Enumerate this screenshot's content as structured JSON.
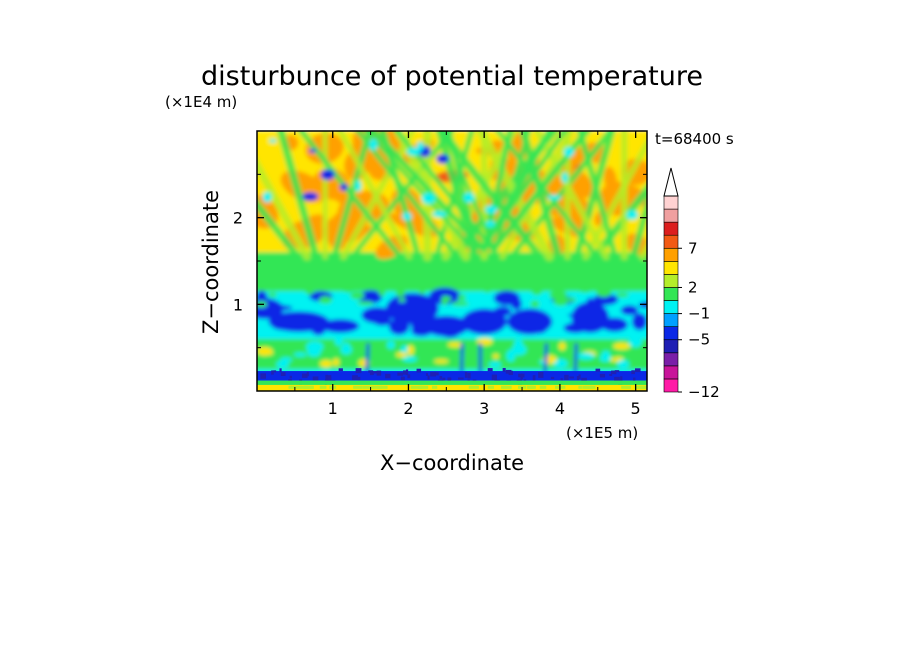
{
  "chart_data": {
    "type": "heatmap",
    "title": "disturbunce of potential temperature",
    "xlabel": "X−coordinate",
    "ylabel": "Z−coordinate",
    "x_unit": "(×1E5 m)",
    "y_unit": "(×1E4 m)",
    "time_label": "t=68400 s",
    "xlim": [
      0,
      5.15
    ],
    "ylim": [
      0,
      3.0
    ],
    "x_ticks": [
      1,
      2,
      3,
      4,
      5
    ],
    "y_ticks": [
      1,
      2
    ],
    "x_tick_labels": [
      "1",
      "2",
      "3",
      "4",
      "5"
    ],
    "y_tick_labels": [
      "1",
      "2"
    ],
    "colorbar": {
      "levels": [
        -12,
        -11,
        -9,
        -7,
        -5,
        -3,
        -1,
        1,
        2,
        3,
        5,
        7,
        9,
        11
      ],
      "colors": [
        "#ff1aa6",
        "#c8149a",
        "#7a1fa8",
        "#1f1fb4",
        "#0a28e6",
        "#00a0ff",
        "#00f2f2",
        "#33e655",
        "#b4ee2a",
        "#ffe500",
        "#ffa000",
        "#f25a14",
        "#dc1e1e",
        "#f0a0a0",
        "#ffd2d2"
      ],
      "tick_labels": [
        "7",
        "2",
        "−1",
        "−5",
        "−12"
      ],
      "tick_values": [
        7,
        2,
        -1,
        -5,
        -12
      ],
      "extend": "max"
    },
    "layers": [
      {
        "z_range": [
          0.0,
          0.04
        ],
        "dominant": "yellow/orange"
      },
      {
        "z_range": [
          0.04,
          0.1
        ],
        "dominant": "green"
      },
      {
        "z_range": [
          0.1,
          0.25
        ],
        "dominant": "dark blue (-5)"
      },
      {
        "z_range": [
          0.25,
          0.6
        ],
        "dominant": "green/cyan with yellow cells"
      },
      {
        "z_range": [
          0.6,
          1.15
        ],
        "dominant": "cyan with dark blue (-5) patches"
      },
      {
        "z_range": [
          1.15,
          1.6
        ],
        "dominant": "green"
      },
      {
        "z_range": [
          1.6,
          3.0
        ],
        "dominant": "yellow/orange with green wave beams"
      }
    ]
  }
}
